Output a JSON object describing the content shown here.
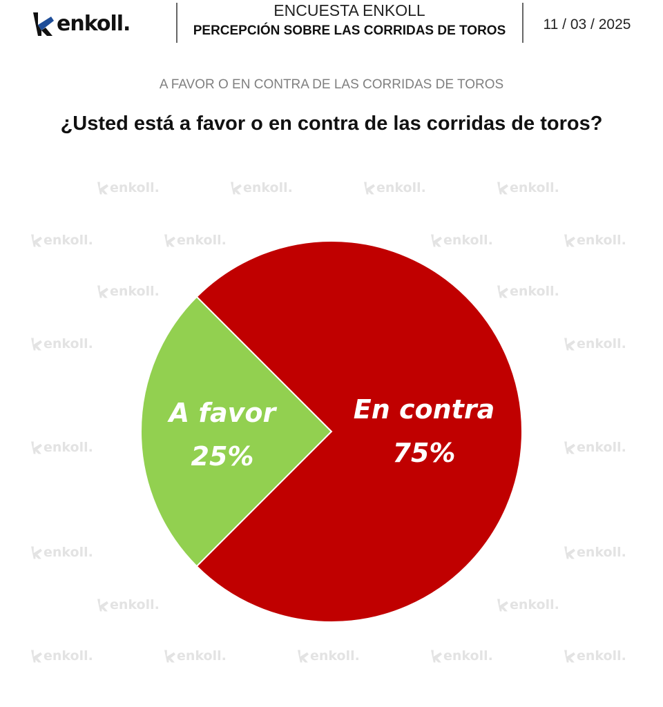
{
  "header": {
    "logo_text": "enkoll.",
    "survey_title": "ENCUESTA ENKOLL",
    "survey_subtitle": "PERCEPCIÓN SOBRE LAS CORRIDAS DE TOROS",
    "date": "11 / 03 / 2025"
  },
  "section_title": "A FAVOR O EN CONTRA DE LAS CORRIDAS DE TOROS",
  "watermark_text": "enkoll.",
  "chart_data": {
    "type": "pie",
    "title": "¿Usted está a favor o en contra de las corridas de toros?",
    "slices": [
      {
        "label": "A favor",
        "value": 25,
        "value_label": "25%",
        "color": "#92d050"
      },
      {
        "label": "En contra",
        "value": 75,
        "value_label": "75%",
        "color": "#c00000"
      }
    ]
  },
  "colors": {
    "logo_accent": "#1f4e99",
    "watermark": "#e3e3e3"
  }
}
